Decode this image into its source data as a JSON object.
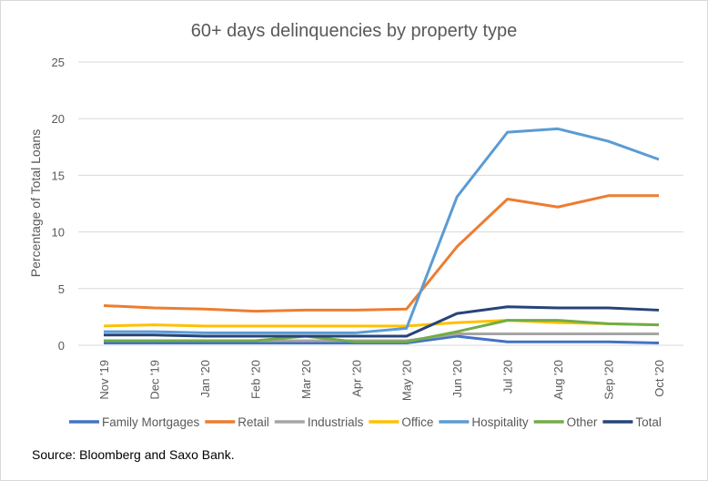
{
  "chart_data": {
    "type": "line",
    "title": "60+ days delinquencies by property type",
    "xlabel": "",
    "ylabel": "Percentage of Total Loans",
    "ylim": [
      0,
      25
    ],
    "yticks": [
      "0",
      "5",
      "10",
      "15",
      "20",
      "25"
    ],
    "grid": true,
    "legend_position": "bottom",
    "categories": [
      "Nov '19",
      "Dec '19",
      "Jan '20",
      "Feb '20",
      "Mar '20",
      "Apr '20",
      "May '20",
      "Jun '20",
      "Jul '20",
      "Aug '20",
      "Sep '20",
      "Oct '20"
    ],
    "series": [
      {
        "name": "Family Mortgages",
        "color": "#4472c4",
        "values": [
          0.2,
          0.2,
          0.2,
          0.2,
          0.2,
          0.2,
          0.2,
          0.8,
          0.3,
          0.3,
          0.3,
          0.2
        ]
      },
      {
        "name": "Retail",
        "color": "#ed7d31",
        "values": [
          3.5,
          3.3,
          3.2,
          3.0,
          3.1,
          3.1,
          3.2,
          8.7,
          12.9,
          12.2,
          13.2,
          13.2
        ]
      },
      {
        "name": "Industrials",
        "color": "#a5a5a5",
        "values": [
          0.4,
          0.4,
          0.4,
          0.4,
          0.4,
          0.4,
          0.4,
          1.0,
          1.0,
          1.0,
          1.0,
          1.0
        ]
      },
      {
        "name": "Office",
        "color": "#ffc000",
        "values": [
          1.7,
          1.8,
          1.7,
          1.7,
          1.7,
          1.7,
          1.7,
          2.0,
          2.2,
          2.0,
          1.9,
          1.8
        ]
      },
      {
        "name": "Hospitality",
        "color": "#5b9bd5",
        "values": [
          1.2,
          1.2,
          1.1,
          1.1,
          1.1,
          1.1,
          1.5,
          13.1,
          18.8,
          19.1,
          18.0,
          16.4
        ]
      },
      {
        "name": "Other",
        "color": "#70ad47",
        "values": [
          0.4,
          0.4,
          0.4,
          0.4,
          0.8,
          0.3,
          0.3,
          1.2,
          2.2,
          2.2,
          1.9,
          1.8
        ]
      },
      {
        "name": "Total",
        "color": "#264478",
        "values": [
          0.9,
          0.9,
          0.8,
          0.8,
          0.8,
          0.8,
          0.8,
          2.8,
          3.4,
          3.3,
          3.3,
          3.1
        ]
      }
    ]
  },
  "source": "Source: Bloomberg and Saxo Bank."
}
